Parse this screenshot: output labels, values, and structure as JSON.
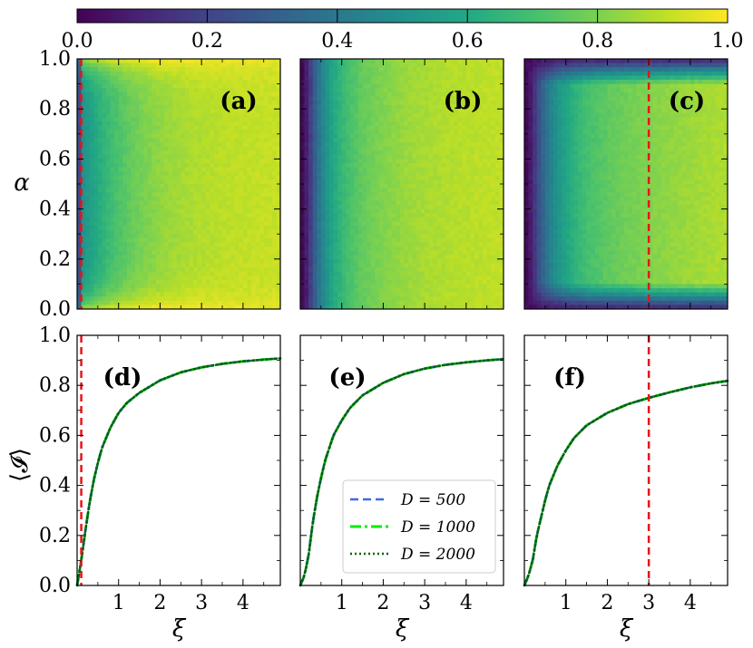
{
  "chart_data": [
    {
      "id": "colorbar",
      "type": "colorbar",
      "colormap": "viridis",
      "range": [
        0.0,
        1.0
      ],
      "ticks": [
        "0.0",
        "0.2",
        "0.4",
        "0.6",
        "0.8",
        "1.0"
      ]
    },
    {
      "id": "a",
      "type": "heatmap",
      "tag": "(a)",
      "xlim": [
        0,
        4.9
      ],
      "ylim": [
        0,
        1.0
      ],
      "ylabel": "α",
      "yticks": [
        "0.0",
        "0.2",
        "0.4",
        "0.6",
        "0.8",
        "1.0"
      ],
      "description_model": "fast_saturation_with_boundary_dip",
      "vline_xi": 0.1
    },
    {
      "id": "b",
      "type": "heatmap",
      "tag": "(b)",
      "xlim": [
        0,
        4.9
      ],
      "ylim": [
        0,
        1.0
      ],
      "description_model": "alpha_independent",
      "vline_xi": null
    },
    {
      "id": "c",
      "type": "heatmap",
      "tag": "(c)",
      "xlim": [
        0,
        4.9
      ],
      "ylim": [
        0,
        1.0
      ],
      "description_model": "dark_boundaries",
      "vline_xi": 3.0
    },
    {
      "id": "d",
      "type": "line",
      "tag": "(d)",
      "xlabel": "ξ",
      "ylabel": "⟨𝓘⟩",
      "xlim": [
        0,
        4.9
      ],
      "ylim": [
        0,
        1.0
      ],
      "xticks": [
        "1",
        "2",
        "3",
        "4"
      ],
      "yticks": [
        "0.0",
        "0.2",
        "0.4",
        "0.6",
        "0.8",
        "1.0"
      ],
      "x": [
        0,
        0.1,
        0.2,
        0.3,
        0.4,
        0.5,
        0.6,
        0.8,
        1.0,
        1.2,
        1.5,
        2.0,
        2.5,
        3.0,
        3.5,
        4.0,
        4.5,
        4.9
      ],
      "values": [
        0.0,
        0.1,
        0.22,
        0.33,
        0.42,
        0.49,
        0.55,
        0.63,
        0.69,
        0.73,
        0.77,
        0.82,
        0.852,
        0.872,
        0.886,
        0.896,
        0.903,
        0.908
      ],
      "vline_xi": 0.1
    },
    {
      "id": "e",
      "type": "line",
      "tag": "(e)",
      "xlabel": "ξ",
      "xlim": [
        0,
        4.9
      ],
      "ylim": [
        0,
        1.0
      ],
      "xticks": [
        "1",
        "2",
        "3",
        "4"
      ],
      "x": [
        0,
        0.1,
        0.2,
        0.3,
        0.4,
        0.5,
        0.6,
        0.8,
        1.0,
        1.2,
        1.5,
        2.0,
        2.5,
        3.0,
        3.5,
        4.0,
        4.5,
        4.9
      ],
      "values": [
        0.0,
        0.04,
        0.12,
        0.25,
        0.35,
        0.43,
        0.5,
        0.6,
        0.66,
        0.71,
        0.76,
        0.81,
        0.845,
        0.867,
        0.882,
        0.892,
        0.9,
        0.905
      ],
      "vline_xi": null
    },
    {
      "id": "f",
      "type": "line",
      "tag": "(f)",
      "xlabel": "ξ",
      "xlim": [
        0,
        4.9
      ],
      "ylim": [
        0,
        1.0
      ],
      "xticks": [
        "1",
        "2",
        "3",
        "4"
      ],
      "x": [
        0,
        0.1,
        0.2,
        0.3,
        0.4,
        0.5,
        0.6,
        0.8,
        1.0,
        1.2,
        1.5,
        2.0,
        2.5,
        3.0,
        3.5,
        4.0,
        4.5,
        4.9
      ],
      "values": [
        0.0,
        0.04,
        0.1,
        0.2,
        0.27,
        0.34,
        0.4,
        0.48,
        0.54,
        0.59,
        0.64,
        0.69,
        0.725,
        0.75,
        0.772,
        0.792,
        0.808,
        0.818
      ],
      "vline_xi": 3.0
    }
  ],
  "legend": {
    "entries": [
      {
        "label": "D = 500",
        "color": "#4169e1",
        "style": "dashed"
      },
      {
        "label": "D = 1000",
        "color": "#00ee00",
        "style": "dashdot"
      },
      {
        "label": "D = 2000",
        "color": "#006400",
        "style": "dotted"
      }
    ]
  },
  "colors": {
    "vline": "#e8141c",
    "frame": "#000000"
  }
}
